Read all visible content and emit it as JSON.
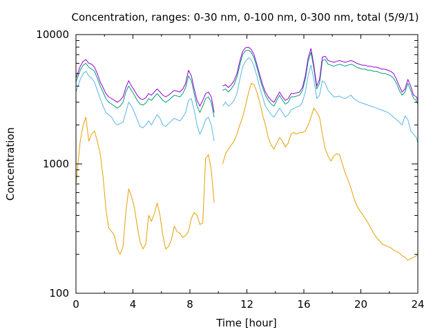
{
  "chart_data": {
    "type": "line",
    "title": "Concentration, ranges: 0-30 nm, 0-100 nm, 0-300 nm, total (5/9/1)",
    "xlabel": "Time [hour]",
    "ylabel": "Concentration",
    "xlim": [
      0,
      24
    ],
    "ylim": [
      100,
      10000
    ],
    "yscale": "log",
    "grid": false,
    "legend": "none",
    "x_ticks": [
      "0",
      "4",
      "8",
      "12",
      "16",
      "20",
      "24"
    ],
    "y_ticks": [
      "100",
      "1000",
      "10000"
    ],
    "gap": [
      9.75,
      10.3
    ],
    "series": [
      {
        "color": "#E69F00",
        "x": [
          0,
          0.3,
          0.5,
          0.7,
          0.9,
          1.1,
          1.3,
          1.5,
          1.7,
          1.9,
          2.1,
          2.3,
          2.5,
          2.7,
          2.9,
          3.1,
          3.3,
          3.5,
          3.7,
          3.9,
          4.1,
          4.3,
          4.5,
          4.7,
          4.9,
          5.1,
          5.3,
          5.5,
          5.7,
          5.9,
          6.1,
          6.3,
          6.5,
          6.7,
          6.9,
          7.1,
          7.3,
          7.5,
          7.7,
          7.9,
          8.1,
          8.3,
          8.5,
          8.7,
          8.9,
          9.1,
          9.3,
          9.5,
          9.7,
          10.3,
          10.5,
          10.7,
          10.9,
          11.1,
          11.3,
          11.5,
          11.7,
          11.9,
          12.1,
          12.3,
          12.5,
          12.7,
          12.9,
          13.1,
          13.3,
          13.5,
          13.7,
          13.9,
          14.1,
          14.3,
          14.5,
          14.7,
          14.9,
          15.1,
          15.3,
          15.5,
          15.7,
          15.9,
          16.1,
          16.3,
          16.5,
          16.7,
          16.9,
          17.1,
          17.3,
          17.5,
          17.7,
          17.9,
          18.1,
          18.3,
          18.5,
          18.7,
          18.9,
          19.1,
          19.3,
          19.5,
          19.7,
          19.9,
          20.1,
          20.3,
          20.5,
          20.7,
          20.9,
          21.1,
          21.3,
          21.5,
          21.7,
          21.9,
          22.1,
          22.3,
          22.5,
          22.7,
          22.9,
          23.1,
          23.3,
          23.5,
          23.7,
          23.9,
          24
        ],
        "y": [
          700,
          1500,
          2000,
          2300,
          1500,
          1700,
          1800,
          1500,
          1200,
          800,
          450,
          320,
          300,
          280,
          220,
          200,
          230,
          420,
          640,
          560,
          460,
          330,
          250,
          220,
          240,
          400,
          360,
          410,
          500,
          400,
          280,
          220,
          230,
          260,
          330,
          300,
          290,
          270,
          280,
          300,
          380,
          420,
          400,
          340,
          350,
          1100,
          1180,
          900,
          500,
          1000,
          1200,
          1300,
          1400,
          1500,
          1700,
          2000,
          2300,
          2800,
          3500,
          4200,
          4100,
          3600,
          3000,
          2400,
          2000,
          1600,
          1400,
          1300,
          1450,
          1600,
          1500,
          1350,
          1450,
          1700,
          1750,
          1700,
          1750,
          1750,
          1800,
          2000,
          2300,
          2700,
          2500,
          2300,
          1700,
          1300,
          1150,
          1050,
          1150,
          1200,
          1180,
          1000,
          850,
          750,
          650,
          550,
          480,
          440,
          410,
          380,
          350,
          320,
          290,
          270,
          255,
          240,
          235,
          230,
          225,
          215,
          210,
          205,
          195,
          190,
          180,
          185,
          190,
          195,
          200
        ]
      },
      {
        "color": "#56B4E9",
        "x": [
          0,
          0.3,
          0.5,
          0.7,
          0.9,
          1.1,
          1.3,
          1.5,
          1.7,
          1.9,
          2.1,
          2.3,
          2.5,
          2.7,
          2.9,
          3.1,
          3.3,
          3.5,
          3.7,
          3.9,
          4.1,
          4.3,
          4.5,
          4.7,
          4.9,
          5.1,
          5.3,
          5.5,
          5.7,
          5.9,
          6.1,
          6.3,
          6.5,
          6.7,
          6.9,
          7.1,
          7.3,
          7.5,
          7.7,
          7.9,
          8.1,
          8.3,
          8.5,
          8.7,
          8.9,
          9.1,
          9.3,
          9.5,
          9.7,
          10.3,
          10.5,
          10.7,
          10.9,
          11.1,
          11.3,
          11.5,
          11.7,
          11.9,
          12.1,
          12.3,
          12.5,
          12.7,
          12.9,
          13.1,
          13.3,
          13.5,
          13.7,
          13.9,
          14.1,
          14.3,
          14.5,
          14.7,
          14.9,
          15.1,
          15.3,
          15.5,
          15.7,
          15.9,
          16.1,
          16.3,
          16.5,
          16.7,
          16.9,
          17.1,
          17.3,
          17.5,
          17.7,
          17.9,
          18.1,
          18.3,
          18.5,
          18.7,
          18.9,
          19.1,
          19.3,
          19.5,
          19.7,
          19.9,
          20.1,
          20.3,
          20.5,
          20.7,
          20.9,
          21.1,
          21.3,
          21.5,
          21.7,
          21.9,
          22.1,
          22.3,
          22.5,
          22.7,
          22.9,
          23.1,
          23.3,
          23.5,
          23.7,
          23.9,
          24
        ],
        "y": [
          3600,
          4500,
          5000,
          5200,
          4800,
          4600,
          4300,
          3700,
          3200,
          2800,
          2500,
          2400,
          2300,
          2100,
          2000,
          2050,
          2100,
          2500,
          3000,
          2800,
          2500,
          2200,
          1950,
          1900,
          2000,
          2150,
          2000,
          2200,
          2400,
          2250,
          2000,
          1950,
          2050,
          2150,
          2250,
          2200,
          2150,
          2300,
          2500,
          3100,
          3200,
          2600,
          2000,
          1700,
          1900,
          2200,
          2300,
          2000,
          1500,
          2800,
          3000,
          2800,
          2900,
          3100,
          3500,
          4500,
          5600,
          6200,
          6600,
          6400,
          5700,
          4800,
          3900,
          3300,
          2800,
          2600,
          2400,
          2300,
          2500,
          2700,
          2500,
          2300,
          2400,
          2600,
          2700,
          2750,
          2800,
          3000,
          3600,
          4800,
          5800,
          4500,
          3200,
          3400,
          4400,
          4200,
          3700,
          3500,
          3300,
          3300,
          3350,
          3250,
          3200,
          3300,
          3400,
          3200,
          3100,
          3000,
          2950,
          2900,
          2850,
          2800,
          2750,
          2700,
          2650,
          2600,
          2550,
          2500,
          2400,
          2300,
          2200,
          2100,
          2000,
          2350,
          2200,
          1800,
          1700,
          1600,
          1450
        ]
      },
      {
        "color": "#009E73",
        "x": [
          0,
          0.3,
          0.5,
          0.7,
          0.9,
          1.1,
          1.3,
          1.5,
          1.7,
          1.9,
          2.1,
          2.3,
          2.5,
          2.7,
          2.9,
          3.1,
          3.3,
          3.5,
          3.7,
          3.9,
          4.1,
          4.3,
          4.5,
          4.7,
          4.9,
          5.1,
          5.3,
          5.5,
          5.7,
          5.9,
          6.1,
          6.3,
          6.5,
          6.7,
          6.9,
          7.1,
          7.3,
          7.5,
          7.7,
          7.9,
          8.1,
          8.3,
          8.5,
          8.7,
          8.9,
          9.1,
          9.3,
          9.5,
          9.7,
          10.3,
          10.5,
          10.7,
          10.9,
          11.1,
          11.3,
          11.5,
          11.7,
          11.9,
          12.1,
          12.3,
          12.5,
          12.7,
          12.9,
          13.1,
          13.3,
          13.5,
          13.7,
          13.9,
          14.1,
          14.3,
          14.5,
          14.7,
          14.9,
          15.1,
          15.3,
          15.5,
          15.7,
          15.9,
          16.1,
          16.3,
          16.5,
          16.7,
          16.9,
          17.1,
          17.3,
          17.5,
          17.7,
          17.9,
          18.1,
          18.3,
          18.5,
          18.7,
          18.9,
          19.1,
          19.3,
          19.5,
          19.7,
          19.9,
          20.1,
          20.3,
          20.5,
          20.7,
          20.9,
          21.1,
          21.3,
          21.5,
          21.7,
          21.9,
          22.1,
          22.3,
          22.5,
          22.7,
          22.9,
          23.1,
          23.3,
          23.5,
          23.7,
          23.9,
          24
        ],
        "y": [
          4300,
          5300,
          5800,
          6000,
          5600,
          5400,
          5200,
          4600,
          4000,
          3600,
          3200,
          3000,
          2900,
          2800,
          2700,
          2800,
          3000,
          3600,
          4000,
          3700,
          3400,
          3100,
          2900,
          2850,
          2950,
          3200,
          3100,
          3300,
          3500,
          3300,
          3100,
          3000,
          3100,
          3250,
          3400,
          3350,
          3300,
          3500,
          3900,
          4800,
          4400,
          3500,
          2800,
          2500,
          2800,
          3200,
          3300,
          3000,
          2300,
          3700,
          3800,
          3600,
          3800,
          4100,
          4700,
          5800,
          7000,
          7500,
          7600,
          7300,
          6600,
          5600,
          4600,
          3900,
          3400,
          3100,
          2900,
          2800,
          3100,
          3400,
          3100,
          2900,
          3000,
          3300,
          3300,
          3350,
          3400,
          3700,
          4500,
          6200,
          7300,
          5500,
          3800,
          4200,
          6300,
          6400,
          5900,
          5800,
          5700,
          5800,
          5900,
          5800,
          5700,
          5800,
          5900,
          5800,
          5600,
          5500,
          5400,
          5400,
          5300,
          5300,
          5200,
          5200,
          5100,
          5000,
          5000,
          4900,
          4800,
          4600,
          4200,
          3700,
          3400,
          3600,
          4200,
          3700,
          3200,
          3100,
          2900
        ]
      },
      {
        "color": "#9400D3",
        "x": [
          0,
          0.3,
          0.5,
          0.7,
          0.9,
          1.1,
          1.3,
          1.5,
          1.7,
          1.9,
          2.1,
          2.3,
          2.5,
          2.7,
          2.9,
          3.1,
          3.3,
          3.5,
          3.7,
          3.9,
          4.1,
          4.3,
          4.5,
          4.7,
          4.9,
          5.1,
          5.3,
          5.5,
          5.7,
          5.9,
          6.1,
          6.3,
          6.5,
          6.7,
          6.9,
          7.1,
          7.3,
          7.5,
          7.7,
          7.9,
          8.1,
          8.3,
          8.5,
          8.7,
          8.9,
          9.1,
          9.3,
          9.5,
          9.7,
          10.3,
          10.5,
          10.7,
          10.9,
          11.1,
          11.3,
          11.5,
          11.7,
          11.9,
          12.1,
          12.3,
          12.5,
          12.7,
          12.9,
          13.1,
          13.3,
          13.5,
          13.7,
          13.9,
          14.1,
          14.3,
          14.5,
          14.7,
          14.9,
          15.1,
          15.3,
          15.5,
          15.7,
          15.9,
          16.1,
          16.3,
          16.5,
          16.7,
          16.9,
          17.1,
          17.3,
          17.5,
          17.7,
          17.9,
          18.1,
          18.3,
          18.5,
          18.7,
          18.9,
          19.1,
          19.3,
          19.5,
          19.7,
          19.9,
          20.1,
          20.3,
          20.5,
          20.7,
          20.9,
          21.1,
          21.3,
          21.5,
          21.7,
          21.9,
          22.1,
          22.3,
          22.5,
          22.7,
          22.9,
          23.1,
          23.3,
          23.5,
          23.7,
          23.9,
          24
        ],
        "y": [
          4600,
          5700,
          6200,
          6400,
          6000,
          5900,
          5600,
          5000,
          4300,
          3900,
          3500,
          3300,
          3200,
          3100,
          3000,
          3100,
          3300,
          3900,
          4400,
          4000,
          3700,
          3400,
          3200,
          3150,
          3250,
          3500,
          3400,
          3600,
          3800,
          3600,
          3400,
          3300,
          3400,
          3550,
          3700,
          3650,
          3600,
          3800,
          4200,
          5300,
          4800,
          3800,
          3100,
          2800,
          3100,
          3500,
          3600,
          3300,
          2500,
          4000,
          4100,
          3900,
          4100,
          4400,
          5000,
          6200,
          7400,
          7900,
          8000,
          7700,
          7000,
          5900,
          4900,
          4100,
          3600,
          3300,
          3100,
          3000,
          3300,
          3600,
          3300,
          3100,
          3200,
          3500,
          3500,
          3550,
          3600,
          3900,
          4800,
          6600,
          7800,
          5800,
          4000,
          4500,
          6700,
          6800,
          6300,
          6200,
          6100,
          6200,
          6300,
          6200,
          6100,
          6200,
          6300,
          6200,
          6000,
          5900,
          5800,
          5800,
          5700,
          5700,
          5600,
          5600,
          5500,
          5400,
          5400,
          5300,
          5200,
          5000,
          4500,
          4000,
          3600,
          3800,
          4500,
          4000,
          3400,
          3300,
          3100
        ]
      }
    ]
  }
}
